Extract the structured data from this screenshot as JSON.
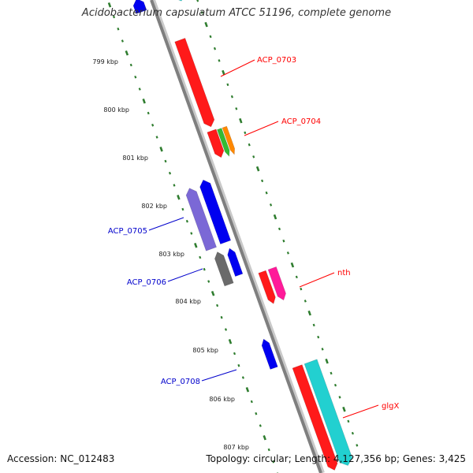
{
  "title": "Acidobacterium capsulatum ATCC 51196, complete genome",
  "footer": {
    "accession_label": "Accession:",
    "accession": "NC_012483",
    "topology_label": "Topology:",
    "topology": "circular",
    "length_label": "Length:",
    "length": "4,127,356 bp",
    "genes_label": "Genes:",
    "genes": "3,425"
  },
  "colors": {
    "backbone": "#8a8a8a",
    "tick_outer": "#2f7d2f",
    "label_red": "#ff0000",
    "label_blue": "#0000cc",
    "cds_red": "#ff1a1a",
    "cds_blue": "#0000f0",
    "cds_green": "#33bb33",
    "cds_orange": "#ff8800",
    "cds_magenta": "#ff1a99",
    "cds_cyan": "#22d0d0",
    "cds_gray": "#6a6a6a",
    "cds_purple": "#7b68d6"
  },
  "ticks": [
    "799 kbp",
    "800 kbp",
    "801 kbp",
    "802 kbp",
    "803 kbp",
    "804 kbp",
    "805 kbp",
    "806 kbp",
    "807 kbp"
  ],
  "gene_labels": [
    {
      "name": "ACP_0703",
      "strand": "forward",
      "color": "red"
    },
    {
      "name": "ACP_0704",
      "strand": "forward",
      "color": "red"
    },
    {
      "name": "ACP_0705",
      "strand": "reverse",
      "color": "blue"
    },
    {
      "name": "ACP_0706",
      "strand": "reverse",
      "color": "blue"
    },
    {
      "name": "nth",
      "strand": "forward",
      "color": "red"
    },
    {
      "name": "ACP_0708",
      "strand": "reverse",
      "color": "blue"
    },
    {
      "name": "glgX",
      "strand": "forward",
      "color": "red"
    }
  ]
}
